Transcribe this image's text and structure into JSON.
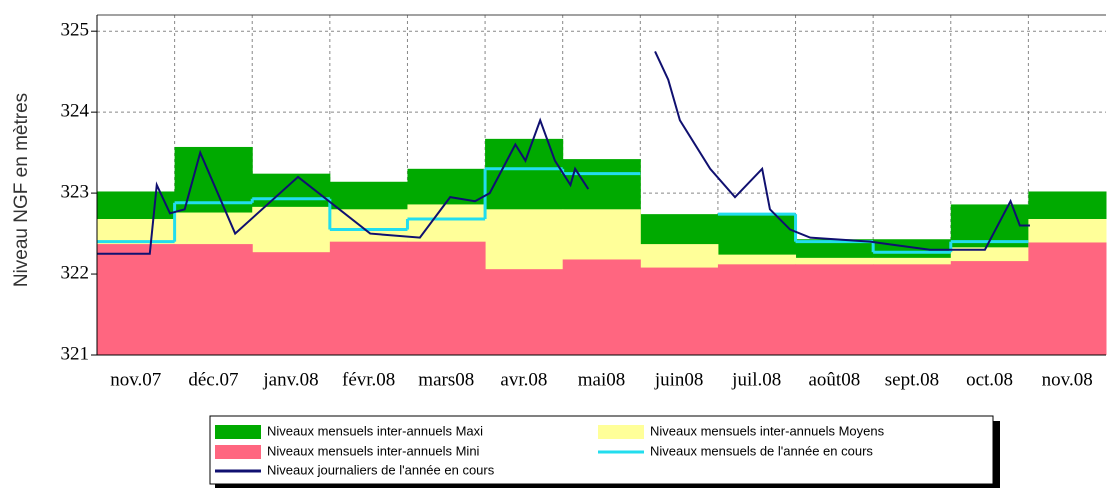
{
  "chart_data": {
    "type": "line",
    "y_label": "Niveau NGF en mètres",
    "categories": [
      "nov.07",
      "déc.07",
      "janv.08",
      "févr.08",
      "mars08",
      "avr.08",
      "mai08",
      "juin08",
      "juil.08",
      "août08",
      "sept.08",
      "oct.08",
      "nov.08"
    ],
    "ylim": [
      321,
      325.2
    ],
    "yticks": [
      321,
      322,
      323,
      324,
      325
    ],
    "xlim": [
      0,
      13
    ],
    "grid": true,
    "series": [
      {
        "name": "Niveaux mensuels inter-annuels Maxi",
        "color": "#00aa00",
        "type": "band",
        "values": [
          323.02,
          323.57,
          323.24,
          323.14,
          323.3,
          323.67,
          323.42,
          322.74,
          322.74,
          322.43,
          322.43,
          322.86,
          323.02
        ]
      },
      {
        "name": "Niveaux mensuels inter-annuels Moyens",
        "color": "#ffff99",
        "type": "band",
        "values": [
          322.68,
          322.76,
          322.83,
          322.8,
          322.86,
          322.8,
          322.8,
          322.37,
          322.24,
          322.2,
          322.2,
          322.33,
          322.68
        ]
      },
      {
        "name": "Niveaux mensuels inter-annuels Mini",
        "color": "#ff6680",
        "type": "band",
        "values": [
          322.37,
          322.37,
          322.27,
          322.4,
          322.4,
          322.06,
          322.18,
          322.08,
          322.12,
          322.12,
          322.12,
          322.16,
          322.39
        ]
      },
      {
        "name": "Niveaux mensuels de l'année en cours",
        "color": "#22ddee",
        "type": "step",
        "values": [
          322.4,
          322.88,
          322.93,
          322.55,
          322.68,
          323.3,
          323.24,
          null,
          322.74,
          322.4,
          322.27,
          322.4,
          null
        ]
      },
      {
        "name": "Niveaux journaliers de l'année en cours",
        "color": "#101070",
        "type": "line",
        "x": [
          0,
          0.68,
          0.77,
          0.94,
          1.13,
          1.33,
          1.78,
          2.59,
          3.52,
          4.16,
          4.55,
          4.87,
          5.06,
          5.39,
          5.52,
          5.71,
          5.9,
          6.1,
          6.16,
          6.33,
          6.7,
          7.19,
          7.36,
          7.51,
          7.9,
          8.22,
          8.57,
          8.67,
          8.93,
          9.19,
          9.96,
          10.73,
          11.44,
          11.77,
          11.89,
          12.02
        ],
        "values": [
          322.25,
          322.25,
          323.1,
          322.75,
          322.8,
          323.5,
          322.5,
          323.2,
          322.5,
          322.45,
          322.95,
          322.9,
          323.0,
          323.6,
          323.4,
          323.9,
          323.4,
          323.1,
          323.3,
          323.05,
          null,
          324.75,
          324.4,
          323.9,
          323.3,
          322.95,
          323.3,
          322.8,
          322.55,
          322.45,
          322.4,
          322.3,
          322.3,
          322.9,
          322.6,
          322.6
        ]
      }
    ]
  }
}
